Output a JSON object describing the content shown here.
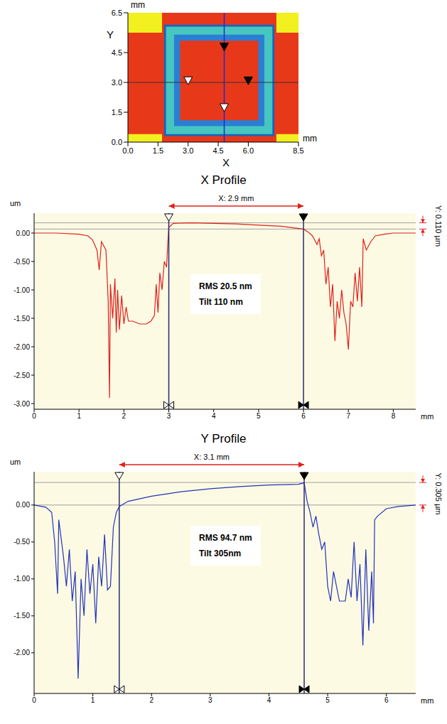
{
  "chart_data": [
    {
      "type": "map",
      "x_label": "X",
      "y_label": "Y",
      "x_unit": "mm",
      "y_unit": "mm",
      "xlim": [
        0,
        8.5
      ],
      "ylim": [
        0,
        6.5
      ],
      "xticks": [
        {
          "value": 0,
          "label": "0.0"
        },
        1.5,
        {
          "value": 3,
          "label": "3.0"
        },
        4.5,
        {
          "value": 6,
          "label": "6.0"
        },
        8.5
      ],
      "yticks": [
        {
          "value": 0,
          "label": "0.0"
        },
        1.5,
        {
          "value": 3,
          "label": "3.0"
        },
        4.5,
        6.5
      ],
      "grid": false,
      "regions": [
        {
          "x": [
            0,
            8.5
          ],
          "y": [
            0,
            6.5
          ],
          "color": "#f2f01e"
        },
        {
          "x": [
            0,
            8.5
          ],
          "y": [
            0.4,
            5.5
          ],
          "color": "#e8381a"
        },
        {
          "x": [
            1.7,
            7.4
          ],
          "y": [
            0,
            6.5
          ],
          "color": "#e8381a"
        },
        {
          "x": [
            1.8,
            7.3
          ],
          "y": [
            0.3,
            5.9
          ],
          "color": "#1565c0"
        },
        {
          "x": [
            1.9,
            7.2
          ],
          "y": [
            0.4,
            5.8
          ],
          "color": "#47c6c0"
        },
        {
          "x": [
            2.3,
            6.8
          ],
          "y": [
            0.8,
            5.4
          ],
          "color": "#2a7fd4"
        },
        {
          "x": [
            2.6,
            6.5
          ],
          "y": [
            1.1,
            5.1
          ],
          "color": "#e8381a"
        }
      ],
      "crosshair": {
        "x": 4.8,
        "y": 3.0
      },
      "markers": [
        {
          "x": 4.8,
          "y": 4.8,
          "color": "#000000"
        },
        {
          "x": 3.0,
          "y": 3.1,
          "color": "#ffffff"
        },
        {
          "x": 6.0,
          "y": 3.1,
          "color": "#000000"
        },
        {
          "x": 4.8,
          "y": 1.75,
          "color": "#ffffff"
        }
      ]
    },
    {
      "type": "line",
      "title": "X Profile",
      "y_unit": "um",
      "x_unit": "mm",
      "color": "#e0201a",
      "grid": false,
      "x": [
        0,
        0.5,
        1.0,
        1.2,
        1.3,
        1.4,
        1.45,
        1.5,
        1.6,
        1.65,
        1.68,
        1.7,
        1.75,
        1.8,
        1.83,
        1.86,
        1.9,
        1.95,
        2.0,
        2.05,
        2.1,
        2.2,
        2.35,
        2.5,
        2.6,
        2.68,
        2.72,
        2.76,
        2.8,
        2.85,
        2.9,
        2.95,
        2.98,
        3.0,
        3.1,
        3.5,
        4.0,
        4.5,
        5.0,
        5.5,
        5.8,
        6.0,
        6.1,
        6.2,
        6.3,
        6.35,
        6.4,
        6.45,
        6.5,
        6.55,
        6.6,
        6.65,
        6.7,
        6.75,
        6.8,
        6.85,
        6.9,
        6.95,
        7.0,
        7.05,
        7.1,
        7.15,
        7.2,
        7.25,
        7.3,
        7.33,
        7.4,
        7.5,
        7.6,
        7.8,
        8.0,
        8.5
      ],
      "values": [
        0,
        0,
        -0.02,
        -0.05,
        -0.12,
        -0.3,
        -0.65,
        -0.15,
        -0.3,
        -1.2,
        -2.9,
        -0.9,
        -1.5,
        -0.8,
        -1.75,
        -1.0,
        -1.7,
        -1.1,
        -1.6,
        -1.3,
        -1.55,
        -1.55,
        -1.6,
        -1.6,
        -1.55,
        -1.45,
        -0.9,
        -1.4,
        -0.7,
        -1.0,
        -0.5,
        -0.6,
        -0.15,
        0.1,
        0.17,
        0.18,
        0.17,
        0.16,
        0.14,
        0.12,
        0.09,
        0.07,
        0.02,
        -0.05,
        -0.2,
        -0.1,
        -0.4,
        -0.3,
        -0.9,
        -0.6,
        -1.3,
        -0.9,
        -1.9,
        -1.2,
        -1.5,
        -1.0,
        -1.4,
        -1.6,
        -2.05,
        -1.2,
        -1.3,
        -0.7,
        -1.2,
        -0.6,
        -1.3,
        -0.1,
        -0.3,
        -0.15,
        -0.05,
        -0.02,
        0,
        0
      ],
      "xlim": [
        0,
        8.5
      ],
      "ylim": [
        -3.1,
        0.35
      ],
      "xticks": [
        0,
        1,
        2,
        3,
        4,
        5,
        6,
        7,
        8
      ],
      "yticks": [
        {
          "value": 0,
          "label": "0.00"
        },
        {
          "value": -0.5,
          "label": "-0.50"
        },
        {
          "value": -1,
          "label": "-1.00"
        },
        {
          "value": -1.5,
          "label": "-1.50"
        },
        {
          "value": -2,
          "label": "-2.00"
        },
        {
          "value": -2.5,
          "label": "-2.50"
        },
        {
          "value": -3,
          "label": "-3.00"
        }
      ],
      "cursors": [
        {
          "x": 3.0,
          "color": "#ffffff"
        },
        {
          "x": 6.0,
          "color": "#000000"
        }
      ],
      "span_label": "X: 2.9 mm",
      "levels": [
        0.07,
        0.18
      ],
      "level_label": "Y: 0.110 µm",
      "annotations": [
        "RMS 20.5 nm",
        "Tilt 110 nm"
      ]
    },
    {
      "type": "line",
      "title": "Y Profile",
      "y_unit": "um",
      "x_unit": "mm",
      "color": "#2233bb",
      "grid": false,
      "x": [
        0,
        0.2,
        0.3,
        0.35,
        0.4,
        0.42,
        0.5,
        0.55,
        0.6,
        0.65,
        0.7,
        0.75,
        0.8,
        0.85,
        0.9,
        0.95,
        1.0,
        1.05,
        1.1,
        1.15,
        1.2,
        1.25,
        1.3,
        1.35,
        1.4,
        1.45,
        1.6,
        2.0,
        2.5,
        3.0,
        3.5,
        4.0,
        4.5,
        4.6,
        4.65,
        4.7,
        4.75,
        4.8,
        4.85,
        4.9,
        4.95,
        5.0,
        5.05,
        5.1,
        5.2,
        5.3,
        5.35,
        5.4,
        5.45,
        5.5,
        5.55,
        5.6,
        5.65,
        5.7,
        5.75,
        5.78,
        5.8,
        5.85,
        6.0,
        6.2,
        6.5
      ],
      "values": [
        0,
        -0.03,
        -0.1,
        -0.5,
        -1.2,
        -0.2,
        -0.7,
        -1.1,
        -0.6,
        -1.3,
        -0.9,
        -2.35,
        -1.0,
        -1.5,
        -0.6,
        -1.2,
        -0.8,
        -1.6,
        -0.7,
        -1.1,
        -0.4,
        -1.15,
        -1.1,
        -0.3,
        -0.1,
        -0.02,
        0.05,
        0.12,
        0.18,
        0.22,
        0.25,
        0.27,
        0.28,
        0.3,
        0.05,
        -0.1,
        -0.3,
        -0.15,
        -0.4,
        -0.6,
        -0.5,
        -1.1,
        -1.3,
        -0.9,
        -1.3,
        -1.3,
        -1.0,
        -1.25,
        -0.5,
        -1.3,
        -0.8,
        -1.9,
        -0.6,
        -1.7,
        -0.9,
        -1.6,
        -0.2,
        -0.15,
        -0.05,
        -0.02,
        0
      ],
      "xlim": [
        0,
        6.5
      ],
      "ylim": [
        -2.55,
        0.45
      ],
      "xticks": [
        0,
        1,
        2,
        3,
        4,
        5,
        6
      ],
      "yticks": [
        {
          "value": 0,
          "label": "0.00"
        },
        {
          "value": -0.5,
          "label": "-0.50"
        },
        {
          "value": -1,
          "label": "-1.00"
        },
        {
          "value": -1.5,
          "label": "-1.50"
        },
        {
          "value": -2,
          "label": "-2.00"
        }
      ],
      "cursors": [
        {
          "x": 1.45,
          "color": "#ffffff"
        },
        {
          "x": 4.6,
          "color": "#000000"
        }
      ],
      "span_label": "X: 3.1 mm",
      "levels": [
        0.0,
        0.305
      ],
      "level_label": "Y: 0.305 µm",
      "annotations": [
        "RMS 94.7 nm",
        "Tilt 305nm"
      ]
    }
  ]
}
